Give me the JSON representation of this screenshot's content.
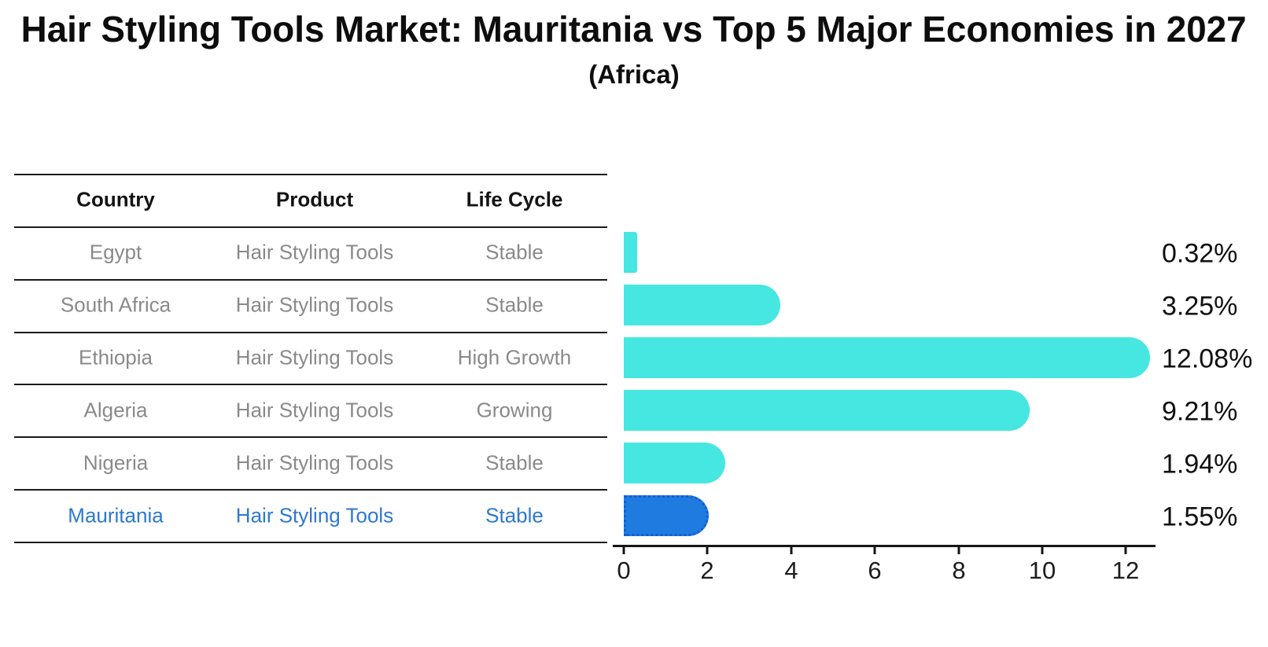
{
  "title": "Hair Styling Tools Market: Mauritania vs Top 5 Major Economies in 2027",
  "subtitle": "(Africa)",
  "table": {
    "headers": [
      "Country",
      "Product",
      "Life Cycle"
    ],
    "rows": [
      {
        "country": "Egypt",
        "product": "Hair Styling Tools",
        "life_cycle": "Stable",
        "highlight": false
      },
      {
        "country": "South Africa",
        "product": "Hair Styling Tools",
        "life_cycle": "Stable",
        "highlight": false
      },
      {
        "country": "Ethiopia",
        "product": "Hair Styling Tools",
        "life_cycle": "High Growth",
        "highlight": false
      },
      {
        "country": "Algeria",
        "product": "Hair Styling Tools",
        "life_cycle": "Growing",
        "highlight": false
      },
      {
        "country": "Nigeria",
        "product": "Hair Styling Tools",
        "life_cycle": "Stable",
        "highlight": false
      },
      {
        "country": "Mauritania",
        "product": "Hair Styling Tools",
        "life_cycle": "Stable",
        "highlight": true
      }
    ]
  },
  "chart_data": {
    "type": "bar",
    "orientation": "horizontal",
    "title": "Hair Styling Tools Market: Mauritania vs Top 5 Major Economies in 2027",
    "subtitle": "(Africa)",
    "categories": [
      "Egypt",
      "South Africa",
      "Ethiopia",
      "Algeria",
      "Nigeria",
      "Mauritania"
    ],
    "values": [
      0.32,
      3.25,
      12.08,
      9.21,
      1.94,
      1.55
    ],
    "value_labels": [
      "0.32%",
      "3.25%",
      "12.08%",
      "9.21%",
      "1.94%",
      "1.55%"
    ],
    "xticks": [
      "0",
      "2",
      "4",
      "6",
      "8",
      "10",
      "12"
    ],
    "xlim": [
      -0.25,
      12.68
    ],
    "grid": false,
    "legend": "none",
    "bar_color": "#46e7e1",
    "highlight_bar_color": "#1f7be0",
    "highlight_border_color": "#0f5fd0",
    "highlight_index": 5
  },
  "colors": {
    "background": "#ffffff",
    "text_primary": "#111111",
    "text_muted": "#8a8a8a",
    "highlight_text": "#2e78cf",
    "line": "#1b1b1b"
  }
}
